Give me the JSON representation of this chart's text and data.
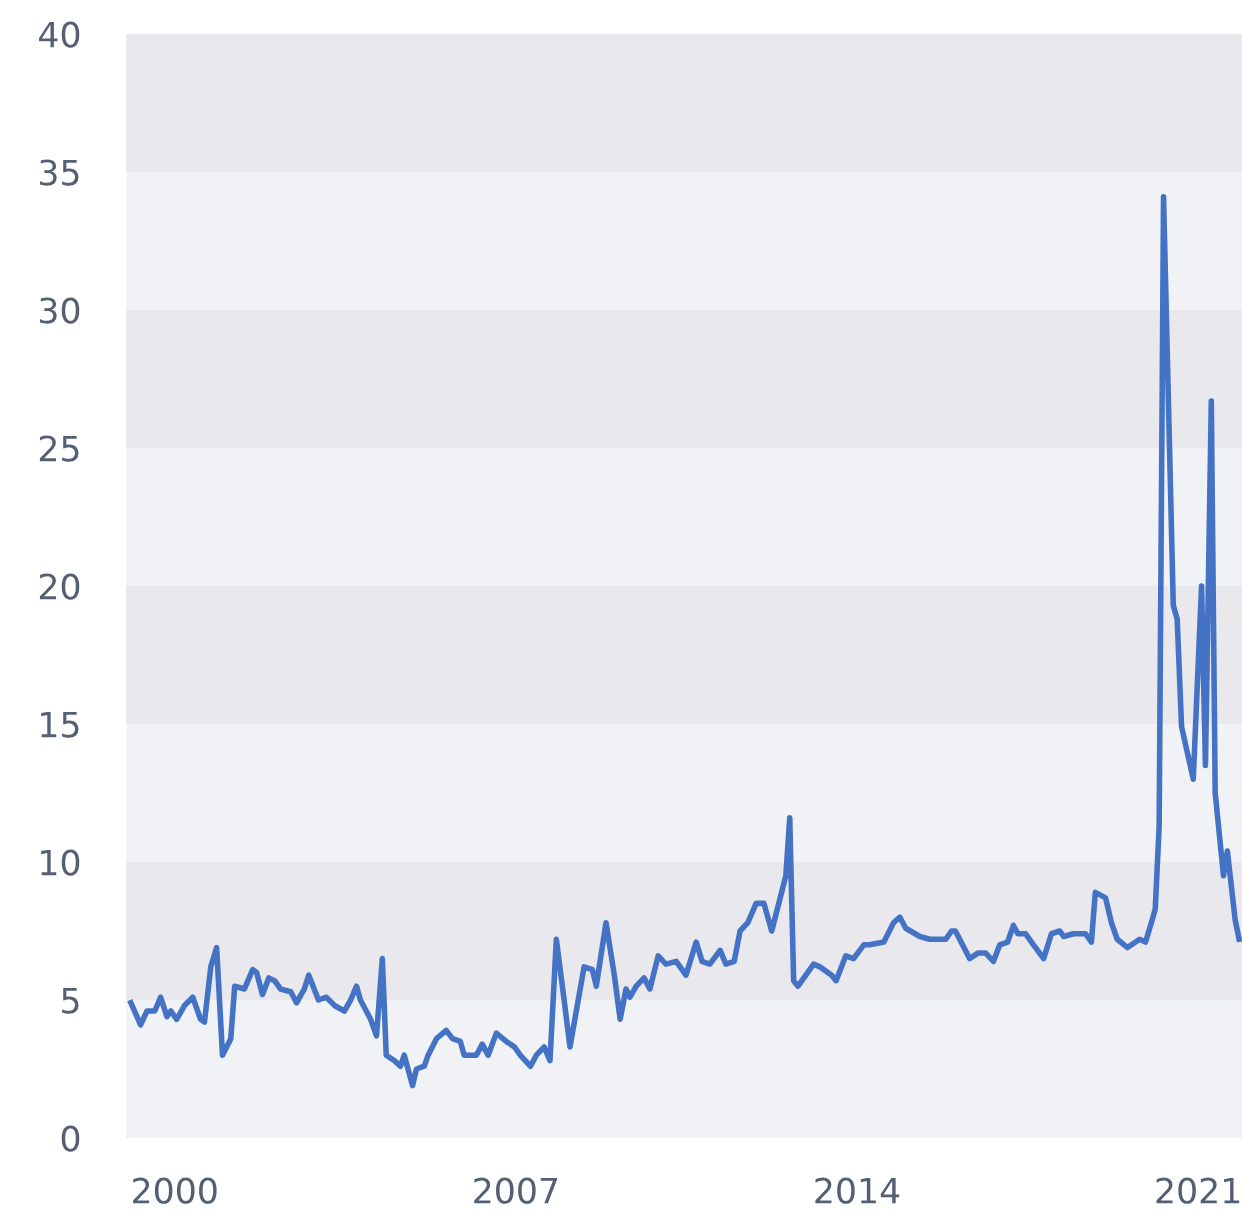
{
  "chart_data": {
    "type": "line",
    "x": [
      1999.1,
      1999.3,
      1999.43,
      1999.59,
      1999.71,
      1999.84,
      1999.92,
      2000.04,
      2000.2,
      2000.37,
      2000.53,
      2000.61,
      2000.74,
      2000.86,
      2000.98,
      2001.15,
      2001.23,
      2001.43,
      2001.6,
      2001.68,
      2001.8,
      2001.93,
      2002.05,
      2002.17,
      2002.38,
      2002.5,
      2002.66,
      2002.75,
      2002.95,
      2003.11,
      2003.28,
      2003.48,
      2003.61,
      2003.73,
      2003.81,
      2004.02,
      2004.14,
      2004.26,
      2004.34,
      2004.51,
      2004.63,
      2004.71,
      2004.88,
      2004.96,
      2005.12,
      2005.2,
      2005.37,
      2005.57,
      2005.7,
      2005.86,
      2005.94,
      2006.19,
      2006.31,
      2006.43,
      2006.6,
      2006.8,
      2006.97,
      2007.09,
      2007.3,
      2007.42,
      2007.58,
      2007.7,
      2007.83,
      2007.99,
      2008.11,
      2008.4,
      2008.57,
      2008.65,
      2008.85,
      2009.02,
      2009.14,
      2009.26,
      2009.34,
      2009.47,
      2009.63,
      2009.75,
      2009.92,
      2010.08,
      2010.29,
      2010.49,
      2010.7,
      2010.82,
      2010.98,
      2011.19,
      2011.31,
      2011.48,
      2011.6,
      2011.76,
      2011.93,
      2012.09,
      2012.25,
      2012.54,
      2012.62,
      2012.7,
      2012.79,
      2013.11,
      2013.24,
      2013.48,
      2013.57,
      2013.77,
      2013.93,
      2014.14,
      2014.26,
      2014.55,
      2014.75,
      2014.88,
      2015.0,
      2015.29,
      2015.49,
      2015.82,
      2015.94,
      2016.02,
      2016.31,
      2016.48,
      2016.64,
      2016.8,
      2016.93,
      2017.09,
      2017.21,
      2017.3,
      2017.46,
      2017.58,
      2017.83,
      2017.99,
      2018.16,
      2018.24,
      2018.44,
      2018.69,
      2018.81,
      2018.89,
      2019.1,
      2019.22,
      2019.34,
      2019.55,
      2019.8,
      2019.92,
      2020.04,
      2020.12,
      2020.2,
      2020.29,
      2020.49,
      2020.57,
      2020.66,
      2020.9,
      2021.07,
      2021.15,
      2021.27,
      2021.35,
      2021.52,
      2021.6,
      2021.76,
      2021.84
    ],
    "series": [
      {
        "color": "#4472c4",
        "values": [
          4.9,
          4.1,
          4.6,
          4.6,
          5.1,
          4.4,
          4.6,
          4.3,
          4.8,
          5.1,
          4.3,
          4.2,
          6.2,
          6.9,
          3.0,
          3.6,
          5.5,
          5.4,
          6.1,
          6.0,
          5.2,
          5.8,
          5.7,
          5.4,
          5.3,
          4.9,
          5.4,
          5.9,
          5.0,
          5.1,
          4.8,
          4.6,
          5.0,
          5.5,
          5.0,
          4.3,
          3.7,
          6.5,
          3.0,
          2.8,
          2.6,
          3.0,
          1.9,
          2.5,
          2.6,
          3.0,
          3.6,
          3.9,
          3.6,
          3.5,
          3.0,
          3.0,
          3.4,
          3.0,
          3.8,
          3.5,
          3.3,
          3.0,
          2.6,
          3.0,
          3.3,
          2.8,
          7.2,
          5.0,
          3.3,
          6.2,
          6.1,
          5.5,
          7.8,
          5.9,
          4.3,
          5.4,
          5.1,
          5.5,
          5.8,
          5.4,
          6.6,
          6.3,
          6.4,
          5.9,
          7.1,
          6.4,
          6.3,
          6.8,
          6.3,
          6.4,
          7.5,
          7.8,
          8.5,
          8.5,
          7.5,
          9.5,
          11.6,
          5.7,
          5.5,
          6.3,
          6.2,
          5.9,
          5.7,
          6.6,
          6.5,
          7.0,
          7.0,
          7.1,
          7.8,
          8.0,
          7.6,
          7.3,
          7.2,
          7.2,
          7.5,
          7.5,
          6.5,
          6.7,
          6.7,
          6.4,
          7.0,
          7.1,
          7.7,
          7.4,
          7.4,
          7.1,
          6.5,
          7.4,
          7.5,
          7.3,
          7.4,
          7.4,
          7.1,
          8.9,
          8.7,
          7.8,
          7.2,
          6.9,
          7.2,
          7.1,
          7.8,
          8.3,
          11.3,
          34.1,
          19.3,
          18.8,
          14.9,
          13.0,
          20.0,
          13.5,
          26.7,
          12.5,
          9.5,
          10.4,
          7.9,
          7.2
        ]
      }
    ],
    "xlim": [
      1999.0,
      2021.9
    ],
    "xticks": [
      2000,
      2007,
      2014,
      2021
    ],
    "ylim": [
      0,
      40
    ],
    "yticks": [
      0,
      5,
      10,
      15,
      20,
      25,
      30,
      35,
      40
    ],
    "bands": [
      {
        "axis": "y",
        "from": 5,
        "to": 10,
        "color": "#e8e8ed"
      },
      {
        "axis": "y",
        "from": 15,
        "to": 20,
        "color": "#e8e8ed"
      },
      {
        "axis": "y",
        "from": 25,
        "to": 30,
        "color": "#e8e8ed"
      },
      {
        "axis": "y",
        "from": 35,
        "to": 40,
        "color": "#e8e8ed"
      }
    ],
    "grid": false,
    "legend": false,
    "marker": "none",
    "line_style": "solid"
  }
}
